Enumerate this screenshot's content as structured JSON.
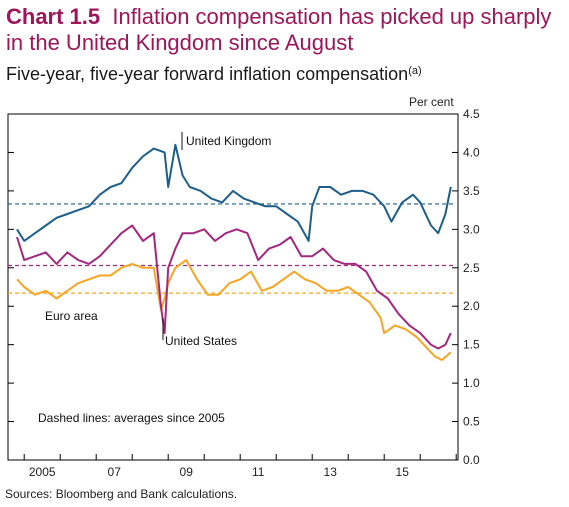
{
  "title_number": "Chart 1.5",
  "title_text": "Inflation compensation has picked up sharply in the United Kingdom since August",
  "subtitle": "Five-year, five-year forward inflation compensation",
  "subtitle_note": "(a)",
  "unit": "Per cent",
  "sources": "Sources:  Bloomberg and Bank calculations.",
  "chart_data": {
    "type": "line",
    "ylim": [
      0.0,
      4.5
    ],
    "y_ticks": [
      "0.0",
      "0.5",
      "1.0",
      "1.5",
      "2.0",
      "2.5",
      "3.0",
      "3.5",
      "4.0",
      "4.5"
    ],
    "x_tick_labels": [
      "2005",
      "07",
      "09",
      "11",
      "13",
      "15"
    ],
    "annotations": [
      "United Kingdom",
      "Euro area",
      "United States",
      "Dashed lines:  averages since 2005"
    ],
    "colors": {
      "uk": "#1d5f8a",
      "us": "#a3287f",
      "euro": "#f5a623"
    },
    "series": [
      {
        "name": "United Kingdom",
        "key": "uk",
        "x": [
          2004.8,
          2005.0,
          2005.3,
          2005.6,
          2005.9,
          2006.2,
          2006.5,
          2006.8,
          2007.1,
          2007.4,
          2007.7,
          2008.0,
          2008.3,
          2008.6,
          2008.9,
          2009.0,
          2009.2,
          2009.4,
          2009.6,
          2009.9,
          2010.2,
          2010.5,
          2010.8,
          2011.1,
          2011.4,
          2011.7,
          2012.0,
          2012.3,
          2012.6,
          2012.9,
          2013.0,
          2013.2,
          2013.5,
          2013.8,
          2014.1,
          2014.4,
          2014.7,
          2015.0,
          2015.2,
          2015.5,
          2015.8,
          2016.0,
          2016.3,
          2016.5,
          2016.7,
          2016.85
        ],
        "y": [
          3.0,
          2.85,
          2.95,
          3.05,
          3.15,
          3.2,
          3.25,
          3.3,
          3.45,
          3.55,
          3.6,
          3.8,
          3.95,
          4.05,
          4.0,
          3.55,
          4.1,
          3.7,
          3.55,
          3.5,
          3.4,
          3.35,
          3.5,
          3.4,
          3.35,
          3.3,
          3.3,
          3.2,
          3.1,
          2.85,
          3.3,
          3.55,
          3.55,
          3.45,
          3.5,
          3.5,
          3.45,
          3.3,
          3.1,
          3.35,
          3.45,
          3.35,
          3.05,
          2.95,
          3.2,
          3.55
        ]
      },
      {
        "name": "United States",
        "key": "us",
        "x": [
          2004.8,
          2005.0,
          2005.3,
          2005.6,
          2005.9,
          2006.2,
          2006.5,
          2006.8,
          2007.1,
          2007.4,
          2007.7,
          2008.0,
          2008.3,
          2008.6,
          2008.8,
          2008.9,
          2009.0,
          2009.2,
          2009.4,
          2009.7,
          2010.0,
          2010.3,
          2010.6,
          2010.9,
          2011.2,
          2011.5,
          2011.8,
          2012.1,
          2012.4,
          2012.7,
          2013.0,
          2013.3,
          2013.6,
          2013.9,
          2014.2,
          2014.5,
          2014.8,
          2015.1,
          2015.4,
          2015.7,
          2016.0,
          2016.3,
          2016.5,
          2016.7,
          2016.85
        ],
        "y": [
          2.9,
          2.6,
          2.65,
          2.7,
          2.55,
          2.7,
          2.6,
          2.55,
          2.65,
          2.8,
          2.95,
          3.05,
          2.85,
          2.95,
          2.0,
          1.65,
          2.5,
          2.75,
          2.95,
          2.95,
          3.0,
          2.85,
          2.95,
          3.0,
          2.95,
          2.6,
          2.75,
          2.8,
          2.9,
          2.65,
          2.65,
          2.75,
          2.6,
          2.55,
          2.55,
          2.45,
          2.2,
          2.1,
          1.9,
          1.75,
          1.65,
          1.5,
          1.45,
          1.5,
          1.65
        ]
      },
      {
        "name": "Euro area",
        "key": "euro",
        "x": [
          2004.8,
          2005.0,
          2005.3,
          2005.6,
          2005.9,
          2006.2,
          2006.5,
          2006.8,
          2007.1,
          2007.4,
          2007.7,
          2008.0,
          2008.3,
          2008.6,
          2008.8,
          2008.9,
          2009.0,
          2009.2,
          2009.5,
          2009.8,
          2010.1,
          2010.4,
          2010.7,
          2011.0,
          2011.3,
          2011.6,
          2011.9,
          2012.2,
          2012.5,
          2012.8,
          2013.1,
          2013.4,
          2013.7,
          2014.0,
          2014.3,
          2014.6,
          2014.9,
          2015.0,
          2015.3,
          2015.6,
          2015.9,
          2016.1,
          2016.4,
          2016.6,
          2016.85
        ],
        "y": [
          2.35,
          2.25,
          2.15,
          2.2,
          2.1,
          2.2,
          2.3,
          2.35,
          2.4,
          2.4,
          2.5,
          2.55,
          2.5,
          2.5,
          1.95,
          2.1,
          2.3,
          2.5,
          2.6,
          2.35,
          2.15,
          2.15,
          2.3,
          2.35,
          2.45,
          2.2,
          2.25,
          2.35,
          2.45,
          2.35,
          2.3,
          2.2,
          2.2,
          2.25,
          2.15,
          2.05,
          1.85,
          1.65,
          1.75,
          1.7,
          1.6,
          1.5,
          1.35,
          1.3,
          1.4
        ]
      }
    ],
    "averages": [
      {
        "key": "uk",
        "value": 3.33
      },
      {
        "key": "us",
        "value": 2.53
      },
      {
        "key": "euro",
        "value": 2.17
      }
    ]
  }
}
